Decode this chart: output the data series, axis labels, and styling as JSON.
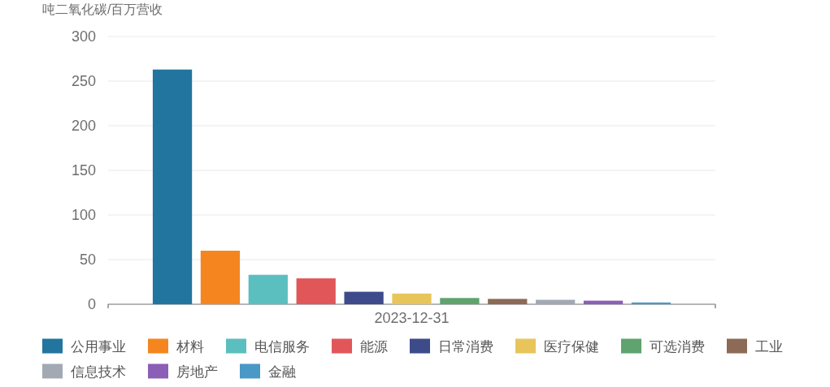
{
  "chart_data": {
    "type": "bar",
    "ylabel": "吨二氧化碳/百万营收",
    "categories": [
      "2023-12-31"
    ],
    "series": [
      {
        "name": "公用事业",
        "color": "#21759f",
        "values": [
          263
        ]
      },
      {
        "name": "材料",
        "color": "#f5861f",
        "values": [
          60
        ]
      },
      {
        "name": "电信服务",
        "color": "#5bbfc0",
        "values": [
          33
        ]
      },
      {
        "name": "能源",
        "color": "#e15759",
        "values": [
          29
        ]
      },
      {
        "name": "日常消费",
        "color": "#3d4b8a",
        "values": [
          14
        ]
      },
      {
        "name": "医疗保健",
        "color": "#e8c55a",
        "values": [
          12
        ]
      },
      {
        "name": "可选消费",
        "color": "#5fa36f",
        "values": [
          7
        ]
      },
      {
        "name": "工业",
        "color": "#8c6a55",
        "values": [
          6
        ]
      },
      {
        "name": "信息技术",
        "color": "#a3a9b3",
        "values": [
          5
        ]
      },
      {
        "name": "房地产",
        "color": "#8b5fb5",
        "values": [
          4
        ]
      },
      {
        "name": "金融",
        "color": "#4a98c5",
        "values": [
          2
        ]
      }
    ],
    "ylim": [
      0,
      300
    ],
    "yticks": [
      0,
      50,
      100,
      150,
      200,
      250,
      300
    ],
    "grid": "y",
    "legend": "bottom"
  }
}
